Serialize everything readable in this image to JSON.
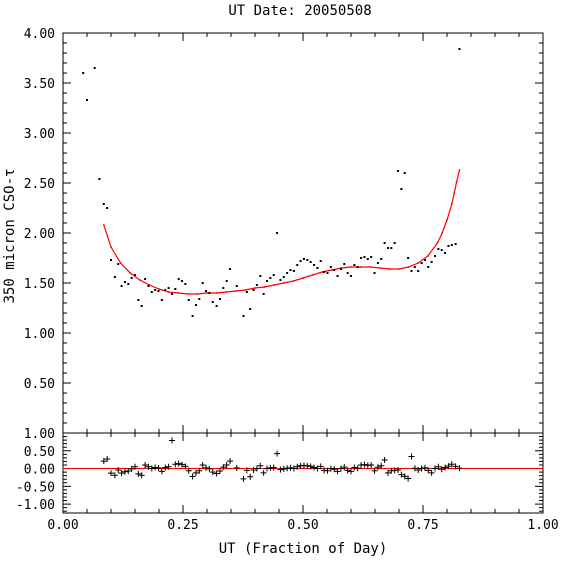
{
  "chart_data": [
    {
      "panel": "main",
      "type": "scatter",
      "title": "UT Date: 20050508",
      "xlabel": "",
      "ylabel": "350 micron CSO-τ",
      "xlim": [
        0.0,
        1.0
      ],
      "ylim": [
        0.0,
        4.0
      ],
      "yticks": [
        "4.00",
        "3.50",
        "3.00",
        "2.50",
        "2.00",
        "1.50",
        "1.00",
        "0.50"
      ],
      "grid": false,
      "colors": {
        "points": "#000000",
        "fit": "#ff0000"
      },
      "series": [
        {
          "kind": "points",
          "x": [
            0.042,
            0.05,
            0.066,
            0.076,
            0.085,
            0.092,
            0.1,
            0.108,
            0.115,
            0.122,
            0.129,
            0.136,
            0.143,
            0.15,
            0.157,
            0.164,
            0.171,
            0.178,
            0.185,
            0.192,
            0.199,
            0.206,
            0.213,
            0.22,
            0.227,
            0.234,
            0.241,
            0.248,
            0.255,
            0.262,
            0.27,
            0.277,
            0.284,
            0.291,
            0.298,
            0.305,
            0.312,
            0.32,
            0.327,
            0.334,
            0.341,
            0.348,
            0.362,
            0.376,
            0.383,
            0.39,
            0.397,
            0.404,
            0.411,
            0.418,
            0.425,
            0.432,
            0.439,
            0.446,
            0.453,
            0.46,
            0.467,
            0.474,
            0.481,
            0.488,
            0.495,
            0.502,
            0.509,
            0.516,
            0.523,
            0.53,
            0.537,
            0.544,
            0.551,
            0.558,
            0.565,
            0.572,
            0.579,
            0.586,
            0.593,
            0.6,
            0.607,
            0.614,
            0.621,
            0.628,
            0.635,
            0.642,
            0.649,
            0.656,
            0.663,
            0.67,
            0.677,
            0.684,
            0.691,
            0.698,
            0.705,
            0.712,
            0.719,
            0.726,
            0.733,
            0.74,
            0.747,
            0.754,
            0.761,
            0.768,
            0.775,
            0.782,
            0.789,
            0.796,
            0.803,
            0.81,
            0.818,
            0.826
          ],
          "y": [
            3.6,
            3.33,
            3.65,
            2.54,
            2.29,
            2.25,
            1.73,
            1.56,
            1.69,
            1.47,
            1.51,
            1.49,
            1.55,
            1.58,
            1.33,
            1.27,
            1.54,
            1.47,
            1.41,
            1.43,
            1.42,
            1.33,
            1.43,
            1.45,
            1.39,
            1.44,
            1.54,
            1.52,
            1.49,
            1.33,
            1.17,
            1.28,
            1.34,
            1.5,
            1.42,
            1.4,
            1.31,
            1.27,
            1.34,
            1.45,
            1.52,
            1.64,
            1.47,
            1.17,
            1.41,
            1.24,
            1.43,
            1.48,
            1.57,
            1.39,
            1.52,
            1.55,
            1.58,
            2.0,
            1.53,
            1.56,
            1.6,
            1.63,
            1.62,
            1.68,
            1.72,
            1.74,
            1.73,
            1.71,
            1.68,
            1.65,
            1.72,
            1.61,
            1.6,
            1.66,
            1.63,
            1.57,
            1.64,
            1.69,
            1.6,
            1.57,
            1.68,
            1.66,
            1.75,
            1.76,
            1.74,
            1.76,
            1.6,
            1.7,
            1.74,
            1.9,
            1.85,
            1.85,
            1.9,
            2.62,
            2.44,
            2.6,
            1.75,
            1.62,
            1.66,
            1.62,
            1.7,
            1.73,
            1.66,
            1.71,
            1.77,
            1.84,
            1.83,
            1.8,
            1.87,
            1.88,
            1.89,
            3.84
          ]
        },
        {
          "kind": "fit-line",
          "x": [
            0.085,
            0.1,
            0.12,
            0.14,
            0.16,
            0.18,
            0.2,
            0.22,
            0.24,
            0.26,
            0.28,
            0.3,
            0.32,
            0.34,
            0.36,
            0.38,
            0.4,
            0.42,
            0.44,
            0.46,
            0.48,
            0.5,
            0.52,
            0.54,
            0.56,
            0.58,
            0.6,
            0.62,
            0.64,
            0.66,
            0.68,
            0.7,
            0.72,
            0.74,
            0.76,
            0.78,
            0.79,
            0.8,
            0.81,
            0.815,
            0.82,
            0.826
          ],
          "y": [
            2.08,
            1.86,
            1.7,
            1.6,
            1.53,
            1.48,
            1.44,
            1.41,
            1.4,
            1.39,
            1.39,
            1.4,
            1.4,
            1.41,
            1.42,
            1.43,
            1.45,
            1.46,
            1.48,
            1.5,
            1.52,
            1.55,
            1.58,
            1.61,
            1.63,
            1.65,
            1.66,
            1.66,
            1.66,
            1.65,
            1.64,
            1.64,
            1.66,
            1.7,
            1.77,
            1.9,
            2.0,
            2.13,
            2.29,
            2.4,
            2.51,
            2.63
          ]
        }
      ]
    },
    {
      "panel": "residuals",
      "type": "scatter",
      "xlabel": "UT (Fraction of Day)",
      "ylabel": "",
      "xlim": [
        0.0,
        1.0
      ],
      "ylim": [
        -1.25,
        1.0
      ],
      "xticks": [
        "0.00",
        "0.25",
        "0.50",
        "0.75",
        "1.00"
      ],
      "yticks": [
        "1.00",
        "0.50",
        "0.00",
        "-0.50",
        "-1.00"
      ],
      "grid": false,
      "colors": {
        "points": "#000000",
        "zero-line": "#ff0000"
      },
      "zero_line": 0.0,
      "series": [
        {
          "kind": "plus-markers",
          "x": [
            0.085,
            0.092,
            0.1,
            0.108,
            0.115,
            0.122,
            0.129,
            0.136,
            0.143,
            0.15,
            0.157,
            0.164,
            0.171,
            0.178,
            0.185,
            0.192,
            0.199,
            0.206,
            0.213,
            0.22,
            0.227,
            0.234,
            0.241,
            0.248,
            0.255,
            0.262,
            0.27,
            0.277,
            0.284,
            0.291,
            0.298,
            0.305,
            0.312,
            0.32,
            0.327,
            0.334,
            0.341,
            0.348,
            0.362,
            0.376,
            0.383,
            0.39,
            0.397,
            0.404,
            0.411,
            0.418,
            0.425,
            0.432,
            0.439,
            0.446,
            0.453,
            0.46,
            0.467,
            0.474,
            0.481,
            0.488,
            0.495,
            0.502,
            0.509,
            0.516,
            0.523,
            0.53,
            0.537,
            0.544,
            0.551,
            0.558,
            0.565,
            0.572,
            0.579,
            0.586,
            0.593,
            0.6,
            0.607,
            0.614,
            0.621,
            0.628,
            0.635,
            0.642,
            0.649,
            0.656,
            0.663,
            0.67,
            0.677,
            0.684,
            0.691,
            0.698,
            0.705,
            0.712,
            0.719,
            0.726,
            0.733,
            0.74,
            0.747,
            0.754,
            0.761,
            0.768,
            0.775,
            0.782,
            0.789,
            0.796,
            0.803,
            0.81,
            0.818,
            0.826
          ],
          "y": [
            0.21,
            0.27,
            -0.13,
            -0.19,
            -0.04,
            -0.13,
            -0.09,
            -0.07,
            -0.01,
            0.05,
            -0.15,
            -0.19,
            0.1,
            0.05,
            0.0,
            0.03,
            0.02,
            -0.08,
            0.03,
            0.05,
            0.79,
            0.12,
            0.14,
            0.11,
            0.06,
            -0.06,
            -0.22,
            -0.12,
            -0.06,
            0.1,
            0.02,
            -0.01,
            -0.1,
            -0.14,
            -0.07,
            0.04,
            0.1,
            0.21,
            0.02,
            -0.29,
            -0.05,
            -0.23,
            -0.04,
            0.0,
            0.08,
            -0.12,
            0.0,
            0.02,
            0.03,
            0.42,
            -0.03,
            -0.01,
            0.01,
            0.02,
            0.0,
            0.05,
            0.08,
            0.09,
            0.08,
            0.06,
            0.03,
            0.0,
            0.06,
            -0.05,
            -0.06,
            0.0,
            -0.02,
            -0.08,
            0.0,
            0.04,
            -0.05,
            -0.08,
            0.03,
            0.01,
            0.1,
            0.11,
            0.09,
            0.1,
            -0.06,
            0.04,
            0.08,
            0.24,
            -0.12,
            -0.06,
            -0.05,
            -0.04,
            -0.17,
            -0.22,
            -0.28,
            0.34,
            0.01,
            -0.04,
            0.0,
            0.02,
            -0.05,
            -0.12,
            0.0,
            0.05,
            -0.02,
            0.03,
            0.07,
            0.12,
            0.06,
            0.01
          ]
        }
      ]
    }
  ]
}
